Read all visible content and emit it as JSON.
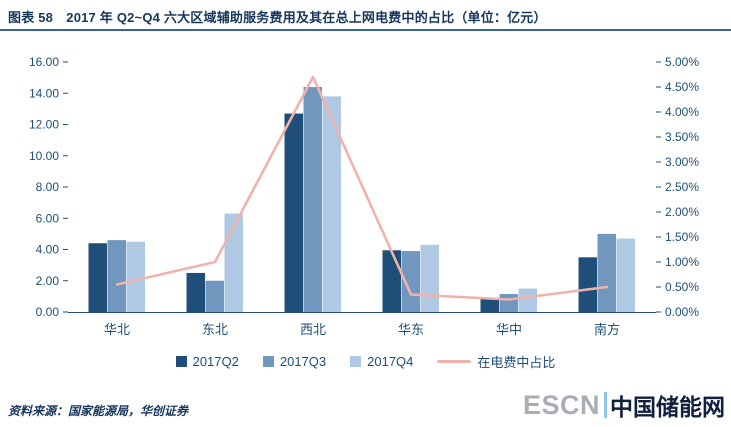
{
  "header": {
    "title": "图表 58　2017 年 Q2~Q4 六大区域辅助服务费用及其在总上网电费中的占比（单位：亿元）"
  },
  "chart_data": {
    "type": "bar",
    "subtype": "grouped-bar-with-line",
    "title": "2017 年 Q2~Q4 六大区域辅助服务费用及其在总上网电费中的占比（单位：亿元）",
    "categories": [
      "华北",
      "东北",
      "西北",
      "华东",
      "华中",
      "南方"
    ],
    "series": [
      {
        "name": "2017Q2",
        "type": "bar",
        "axis": "left",
        "color": "#1F4E79",
        "values": [
          4.4,
          2.5,
          12.7,
          3.95,
          0.9,
          3.5
        ]
      },
      {
        "name": "2017Q3",
        "type": "bar",
        "axis": "left",
        "color": "#7197BF",
        "values": [
          4.6,
          2.0,
          14.4,
          3.9,
          1.15,
          5.0
        ]
      },
      {
        "name": "2017Q4",
        "type": "bar",
        "axis": "left",
        "color": "#AFC9E4",
        "values": [
          4.5,
          6.3,
          13.8,
          4.3,
          1.5,
          4.7
        ]
      },
      {
        "name": "在电费中占比",
        "type": "line",
        "axis": "right",
        "color": "#F0B2AD",
        "values": [
          0.55,
          1.0,
          4.7,
          0.35,
          0.25,
          0.5
        ]
      }
    ],
    "left_axis": {
      "min": 0,
      "max": 16,
      "step": 2,
      "labels": [
        "0.00",
        "2.00",
        "4.00",
        "6.00",
        "8.00",
        "10.00",
        "12.00",
        "14.00",
        "16.00"
      ]
    },
    "right_axis": {
      "min": 0,
      "max": 5,
      "step": 0.5,
      "labels": [
        "0.00%",
        "0.50%",
        "1.00%",
        "1.50%",
        "2.00%",
        "2.50%",
        "3.00%",
        "3.50%",
        "4.00%",
        "4.50%",
        "5.00%"
      ]
    },
    "axis_color": "#1F4E79",
    "grid": false,
    "legend_position": "bottom"
  },
  "footer": {
    "source": "资料来源：国家能源局，华创证券",
    "logo_escn": "ESCN",
    "logo_cn": "中国储能网"
  }
}
